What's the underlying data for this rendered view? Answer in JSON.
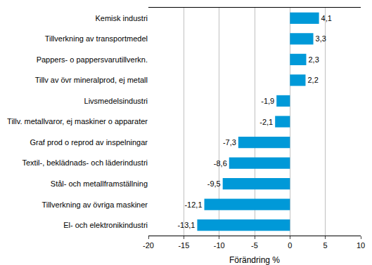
{
  "chart_data": {
    "type": "bar",
    "orientation": "horizontal",
    "categories": [
      "Kemisk industri",
      "Tillverkning av transportmedel",
      "Pappers- o pappersvarutillverkn.",
      "Tillv av övr mineralprod, ej metall",
      "Livsmedelsindustri",
      "Tillv. metallvaror, ej maskiner o apparater",
      "Graf prod o reprod av inspelningar",
      "Textil-, beklädnads- och läderindustri",
      "Stål- och metallframställning",
      "Tillverkning av övriga maskiner",
      "El- och elektronikindustri"
    ],
    "values": [
      4.1,
      3.3,
      2.3,
      2.2,
      -1.9,
      -2.1,
      -7.3,
      -8.6,
      -9.5,
      -12.1,
      -13.1
    ],
    "value_labels": [
      "4,1",
      "3,3",
      "2,3",
      "2,2",
      "-1,9",
      "-2,1",
      "-7,3",
      "-8,6",
      "-9,5",
      "-12,1",
      "-13,1"
    ],
    "data_labels": true,
    "color": "#0099d8",
    "x_label": "Förändring %",
    "xlim": [
      -20,
      10
    ],
    "xticks": [
      -20,
      -15,
      -10,
      -5,
      0,
      5,
      10
    ],
    "grid": true
  }
}
